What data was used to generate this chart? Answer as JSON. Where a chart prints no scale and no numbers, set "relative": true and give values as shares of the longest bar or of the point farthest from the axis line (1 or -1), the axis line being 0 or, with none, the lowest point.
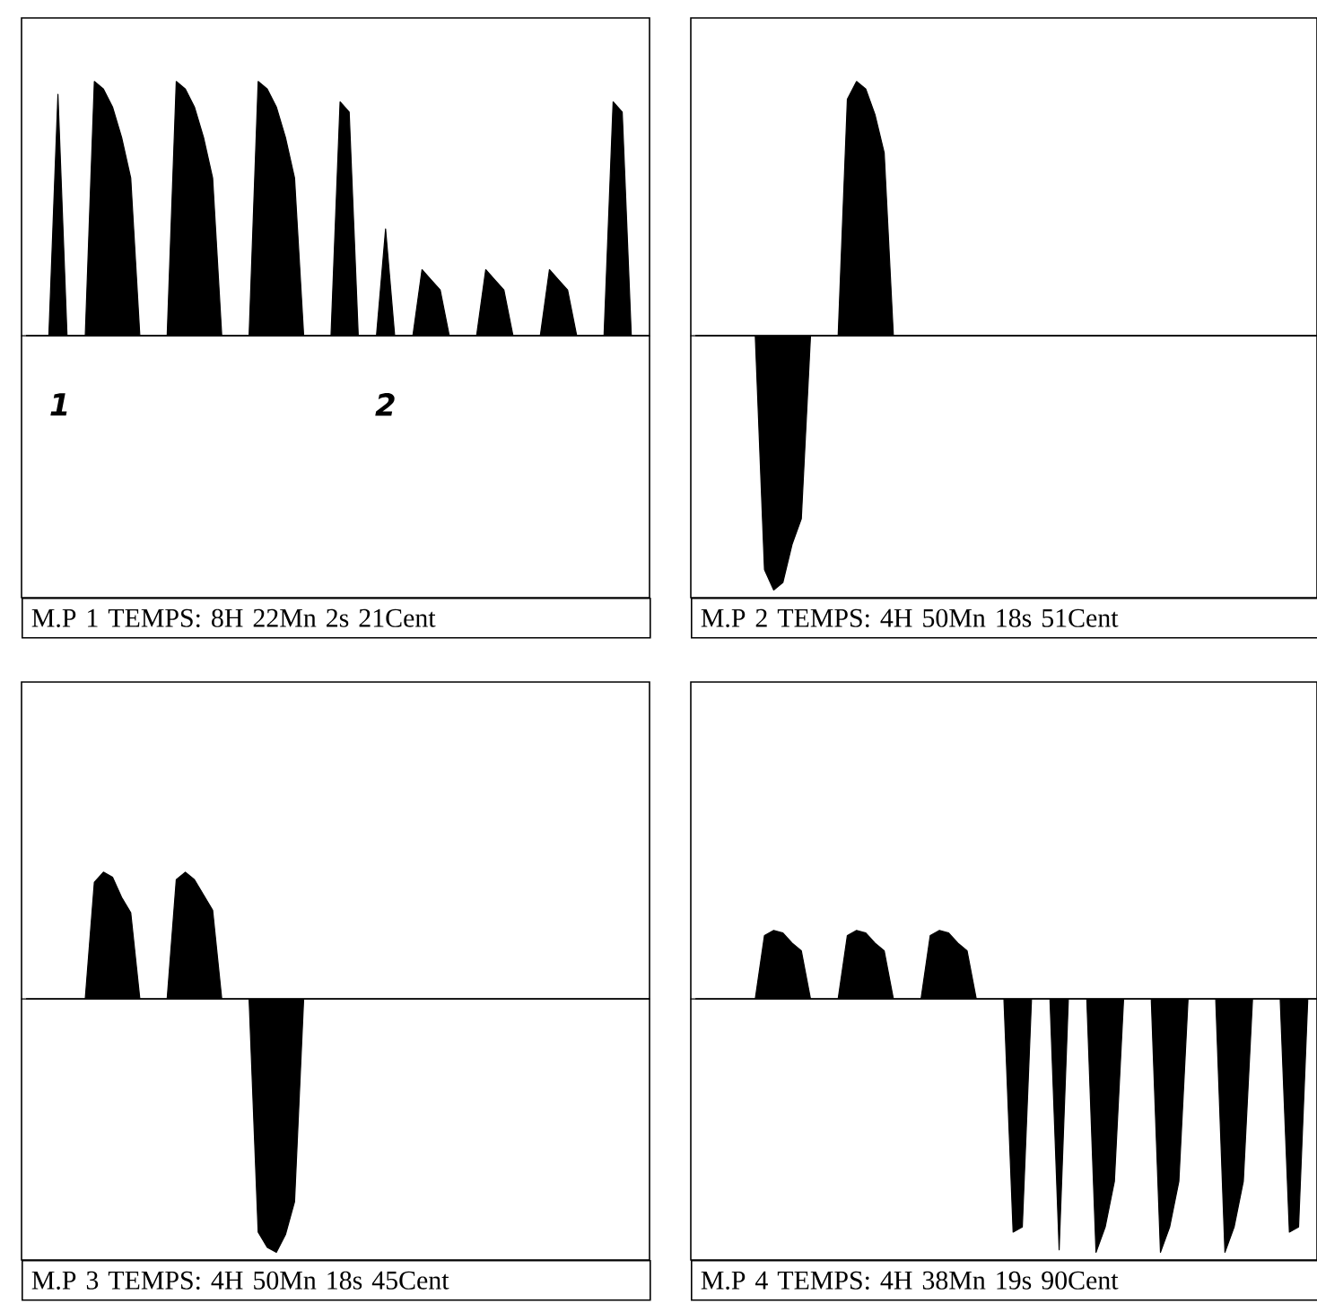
{
  "chart_data": [
    {
      "type": "area",
      "relative": true,
      "title": "M.P 1 TEMPS: 8H 22Mn 2s 21Cent",
      "color": "#000000",
      "annotations": [
        "1",
        "2"
      ],
      "categories": [
        null,
        null,
        null,
        null,
        null,
        null,
        null,
        null,
        null,
        null,
        null,
        null,
        null,
        null,
        null,
        null,
        null,
        null,
        null,
        null,
        null,
        null,
        null,
        null,
        null,
        null,
        null,
        null,
        null,
        null,
        null,
        null,
        null,
        null,
        null,
        null,
        null,
        null,
        null,
        null,
        null,
        null,
        null,
        null,
        null,
        null,
        null,
        null,
        null,
        null,
        null,
        null,
        null,
        null,
        null,
        null,
        null,
        null,
        null,
        null,
        null,
        null,
        null,
        null,
        null,
        null,
        null,
        null,
        null,
        null
      ],
      "values": [
        0,
        0,
        0,
        0,
        0.95,
        0,
        0,
        0,
        1.0,
        0.97,
        0.9,
        0.78,
        0.62,
        0,
        0,
        0,
        0,
        1.0,
        0.97,
        0.9,
        0.78,
        0.62,
        0,
        0,
        0,
        0,
        1.0,
        0.97,
        0.9,
        0.78,
        0.62,
        0,
        0,
        0,
        0,
        0.92,
        0.88,
        0,
        0,
        0,
        0.42,
        0,
        0,
        0,
        0.26,
        0.22,
        0.18,
        0,
        0,
        0,
        0,
        0.26,
        0.22,
        0.18,
        0,
        0,
        0,
        0,
        0.26,
        0.22,
        0.18,
        0,
        0,
        0,
        0,
        0.92,
        0.88,
        0,
        0,
        0
      ]
    },
    {
      "type": "area",
      "relative": true,
      "title": "M.P 2 TEMPS: 4H 50Mn 18s 51Cent",
      "color": "#000000",
      "categories": [
        null,
        null,
        null,
        null,
        null,
        null,
        null,
        null,
        null,
        null,
        null,
        null,
        null,
        null,
        null,
        null,
        null,
        null,
        null,
        null,
        null,
        null,
        null,
        null,
        null,
        null,
        null,
        null,
        null,
        null,
        null,
        null,
        null,
        null,
        null,
        null,
        null,
        null,
        null,
        null,
        null,
        null,
        null,
        null,
        null,
        null,
        null,
        null,
        null,
        null,
        null,
        null,
        null,
        null,
        null,
        null,
        null,
        null,
        null,
        null,
        null,
        null,
        null,
        null,
        null,
        null,
        null,
        null,
        null
      ],
      "values": [
        0,
        0,
        0,
        0,
        0,
        0,
        0,
        0,
        -0.92,
        -1.0,
        -0.97,
        -0.82,
        -0.72,
        0,
        0,
        0,
        0,
        0.93,
        1.0,
        0.97,
        0.87,
        0.72,
        0,
        0,
        0,
        0,
        0,
        0,
        0,
        0,
        0,
        0,
        0,
        0,
        0,
        0,
        0,
        0,
        0,
        0,
        0,
        0,
        0,
        0,
        0,
        0,
        0,
        0,
        0,
        0,
        0,
        0,
        0,
        0,
        0,
        0,
        0,
        0,
        0,
        0,
        0,
        0,
        0,
        0,
        0,
        0,
        0,
        0,
        0
      ]
    },
    {
      "type": "area",
      "relative": true,
      "title": "M.P 3 TEMPS: 4H 50Mn 18s 45Cent",
      "color": "#000000",
      "categories": [
        null,
        null,
        null,
        null,
        null,
        null,
        null,
        null,
        null,
        null,
        null,
        null,
        null,
        null,
        null,
        null,
        null,
        null,
        null,
        null,
        null,
        null,
        null,
        null,
        null,
        null,
        null,
        null,
        null,
        null,
        null,
        null,
        null,
        null,
        null,
        null,
        null,
        null,
        null,
        null,
        null,
        null,
        null,
        null,
        null,
        null,
        null,
        null,
        null,
        null,
        null,
        null,
        null,
        null,
        null,
        null,
        null,
        null,
        null,
        null,
        null,
        null,
        null,
        null,
        null,
        null,
        null,
        null,
        null,
        null
      ],
      "values": [
        0,
        0,
        0,
        0,
        0,
        0,
        0,
        0,
        0.46,
        0.5,
        0.48,
        0.4,
        0.34,
        0,
        0,
        0,
        0,
        0.47,
        0.5,
        0.47,
        0.41,
        0.35,
        0,
        0,
        0,
        0,
        -0.92,
        -0.98,
        -1.0,
        -0.93,
        -0.8,
        0,
        0,
        0,
        0,
        0,
        0,
        0,
        0,
        0,
        0,
        0,
        0,
        0,
        0,
        0,
        0,
        0,
        0,
        0,
        0,
        0,
        0,
        0,
        0,
        0,
        0,
        0,
        0,
        0,
        0,
        0,
        0,
        0,
        0,
        0,
        0,
        0,
        0,
        0
      ]
    },
    {
      "type": "area",
      "relative": true,
      "title": "M.P 4 TEMPS: 4H 38Mn 19s 90Cent",
      "color": "#000000",
      "categories": [
        null,
        null,
        null,
        null,
        null,
        null,
        null,
        null,
        null,
        null,
        null,
        null,
        null,
        null,
        null,
        null,
        null,
        null,
        null,
        null,
        null,
        null,
        null,
        null,
        null,
        null,
        null,
        null,
        null,
        null,
        null,
        null,
        null,
        null,
        null,
        null,
        null,
        null,
        null,
        null,
        null,
        null,
        null,
        null,
        null,
        null,
        null,
        null,
        null,
        null,
        null,
        null,
        null,
        null,
        null,
        null,
        null,
        null,
        null,
        null,
        null,
        null,
        null,
        null,
        null,
        null,
        null,
        null,
        null
      ],
      "values": [
        0,
        0,
        0,
        0,
        0,
        0,
        0,
        0,
        0.25,
        0.27,
        0.26,
        0.22,
        0.19,
        0,
        0,
        0,
        0,
        0.25,
        0.27,
        0.26,
        0.22,
        0.19,
        0,
        0,
        0,
        0,
        0.25,
        0.27,
        0.26,
        0.22,
        0.19,
        0,
        0,
        0,
        0,
        -0.92,
        -0.9,
        0,
        0,
        0,
        -0.99,
        0,
        0,
        0,
        -1.0,
        -0.9,
        -0.72,
        0,
        0,
        0,
        0,
        -1.0,
        -0.9,
        -0.72,
        0,
        0,
        0,
        0,
        -1.0,
        -0.9,
        -0.72,
        0,
        0,
        0,
        0,
        -0.92,
        -0.9,
        0,
        0
      ]
    }
  ]
}
